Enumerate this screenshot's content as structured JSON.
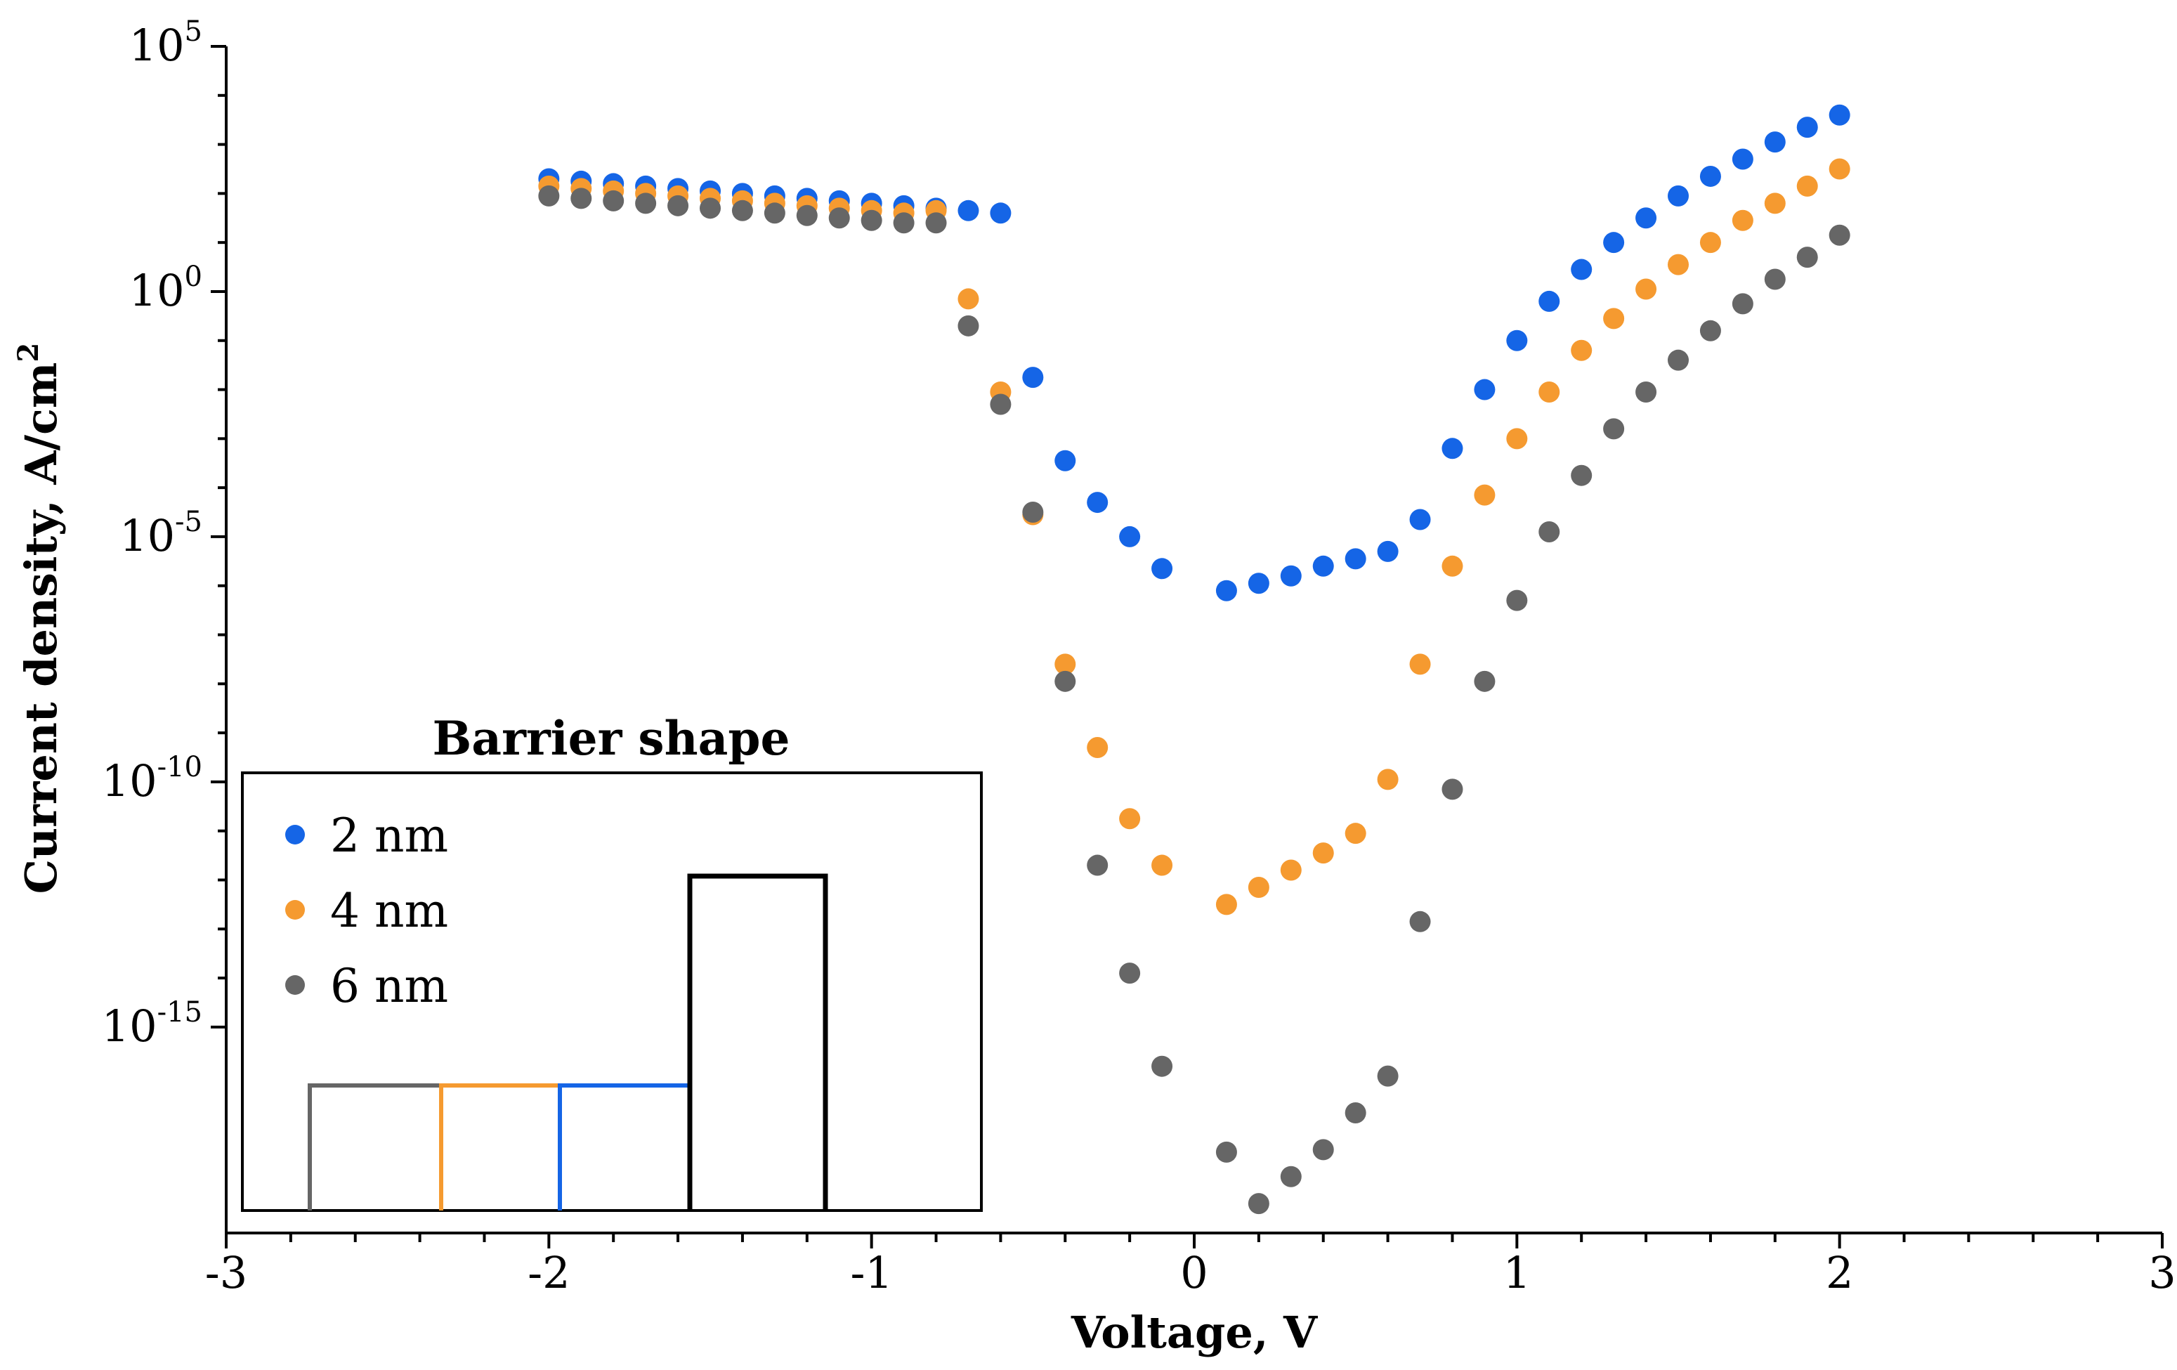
{
  "chart_data": {
    "type": "scatter",
    "title": "",
    "xlabel": "Voltage, V",
    "ylabel": "Current density, A/cm",
    "ylabel_sup": "2",
    "yscale": "log",
    "xlim": [
      -3,
      3
    ],
    "ylim_exp": [
      -19.2,
      5
    ],
    "x_ticks": [
      -3,
      -2,
      -1,
      0,
      1,
      2,
      3
    ],
    "x_tick_labels": [
      "-3",
      "-2",
      "-1",
      "0",
      "1",
      "2",
      "3"
    ],
    "y_ticks": [
      {
        "exp": 5,
        "base": "10",
        "sup": "5"
      },
      {
        "exp": 0,
        "base": "10",
        "sup": "0"
      },
      {
        "exp": -5,
        "base": "10",
        "sup": "-5"
      },
      {
        "exp": -10,
        "base": "10",
        "sup": "-10"
      },
      {
        "exp": -15,
        "base": "10",
        "sup": "-15"
      }
    ],
    "series": [
      {
        "name": "2 nm",
        "color": "#1565e6",
        "x": [
          -2.0,
          -1.9,
          -1.8,
          -1.7,
          -1.6,
          -1.5,
          -1.4,
          -1.3,
          -1.2,
          -1.1,
          -1.0,
          -0.9,
          -0.8,
          -0.7,
          -0.6,
          -0.5,
          -0.4,
          -0.3,
          -0.2,
          -0.1,
          0.1,
          0.2,
          0.3,
          0.4,
          0.5,
          0.6,
          0.7,
          0.8,
          0.9,
          1.0,
          1.1,
          1.2,
          1.3,
          1.4,
          1.5,
          1.6,
          1.7,
          1.8,
          1.9,
          2.0
        ],
        "log10_y": [
          2.3,
          2.25,
          2.2,
          2.15,
          2.1,
          2.05,
          2.0,
          1.95,
          1.9,
          1.85,
          1.8,
          1.75,
          1.7,
          1.65,
          1.6,
          -1.75,
          -3.45,
          -4.3,
          -5.0,
          -5.65,
          -6.1,
          -5.95,
          -5.8,
          -5.6,
          -5.45,
          -5.3,
          -4.65,
          -3.2,
          -2.0,
          -1.0,
          -0.2,
          0.45,
          1.0,
          1.5,
          1.95,
          2.35,
          2.7,
          3.05,
          3.35,
          3.6
        ]
      },
      {
        "name": "4 nm",
        "color": "#f59a30",
        "x": [
          -2.0,
          -1.9,
          -1.8,
          -1.7,
          -1.6,
          -1.5,
          -1.4,
          -1.3,
          -1.2,
          -1.1,
          -1.0,
          -0.9,
          -0.8,
          -0.7,
          -0.6,
          -0.5,
          -0.4,
          -0.3,
          -0.2,
          -0.1,
          0.1,
          0.2,
          0.3,
          0.4,
          0.5,
          0.6,
          0.7,
          0.8,
          0.9,
          1.0,
          1.1,
          1.2,
          1.3,
          1.4,
          1.5,
          1.6,
          1.7,
          1.8,
          1.9,
          2.0
        ],
        "log10_y": [
          2.15,
          2.1,
          2.05,
          2.0,
          1.95,
          1.9,
          1.85,
          1.8,
          1.75,
          1.7,
          1.65,
          1.6,
          1.65,
          -0.15,
          -2.05,
          -4.55,
          -7.6,
          -9.3,
          -10.75,
          -11.7,
          -12.5,
          -12.15,
          -11.8,
          -11.45,
          -11.05,
          -9.95,
          -7.6,
          -5.6,
          -4.15,
          -3.0,
          -2.05,
          -1.2,
          -0.55,
          0.05,
          0.55,
          1.0,
          1.45,
          1.8,
          2.15,
          2.5
        ]
      },
      {
        "name": "6 nm",
        "color": "#666666",
        "x": [
          -2.0,
          -1.9,
          -1.8,
          -1.7,
          -1.6,
          -1.5,
          -1.4,
          -1.3,
          -1.2,
          -1.1,
          -1.0,
          -0.9,
          -0.8,
          -0.7,
          -0.6,
          -0.5,
          -0.4,
          -0.3,
          -0.2,
          -0.1,
          0.1,
          0.2,
          0.3,
          0.4,
          0.5,
          0.6,
          0.7,
          0.8,
          0.9,
          1.0,
          1.1,
          1.2,
          1.3,
          1.4,
          1.5,
          1.6,
          1.7,
          1.8,
          1.9,
          2.0
        ],
        "log10_y": [
          1.95,
          1.9,
          1.85,
          1.8,
          1.75,
          1.7,
          1.65,
          1.6,
          1.55,
          1.5,
          1.45,
          1.4,
          1.4,
          -0.7,
          -2.3,
          -4.5,
          -7.95,
          -11.7,
          -13.9,
          -15.8,
          -17.55,
          -18.6,
          -18.05,
          -17.5,
          -16.75,
          -16.0,
          -12.85,
          -10.15,
          -7.95,
          -6.3,
          -4.9,
          -3.75,
          -2.8,
          -2.05,
          -1.4,
          -0.8,
          -0.25,
          0.25,
          0.7,
          1.15
        ]
      }
    ],
    "legend": {
      "position": "bottom-left inset",
      "entries": [
        "2 nm",
        "4 nm",
        "6 nm"
      ]
    },
    "inset": {
      "title": "Barrier shape",
      "steps": [
        {
          "series": "6 nm",
          "color": "#666666"
        },
        {
          "series": "4 nm",
          "color": "#f59a30"
        },
        {
          "series": "2 nm",
          "color": "#1565e6"
        }
      ],
      "barrier_color": "#000000"
    }
  }
}
